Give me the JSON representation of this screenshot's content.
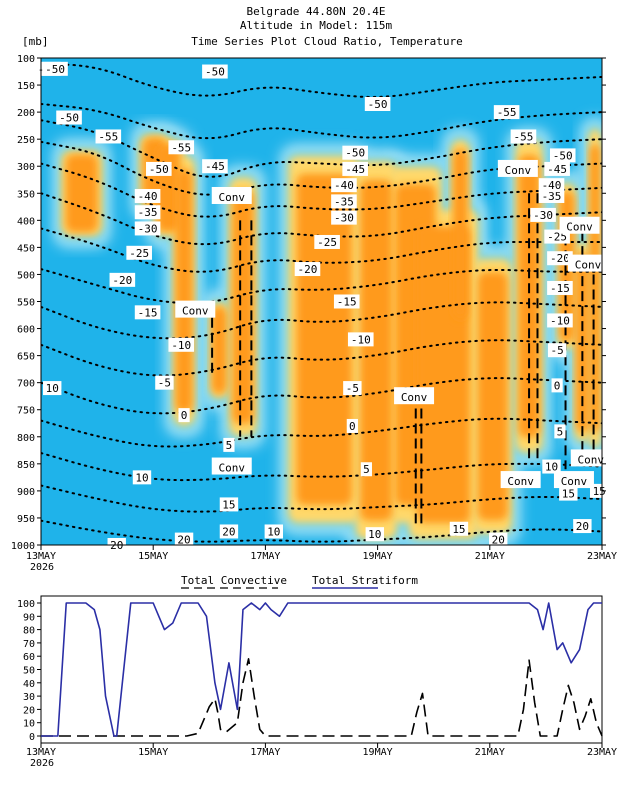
{
  "header": {
    "title": "Belgrade   44.80N 20.4E",
    "subtitle1": "Altitude in Model: 115m",
    "subtitle2": "Time Series Plot Cloud Ratio, Temperature",
    "yunit": "[mb]"
  },
  "colors": {
    "background_field": "#1fb3ea",
    "cloud_low": "#5fd0f0",
    "cloud_pale": "#bde9f7",
    "cloud_mid": "#ffd86a",
    "cloud_high": "#ff9a1e",
    "cloud_core": "#ff6a00",
    "convective_line": "#000000",
    "stratiform_line": "#2b2fa6"
  },
  "chart_data": [
    {
      "type": "heatmap",
      "title": "Time Series Plot Cloud Ratio, Temperature",
      "ylabel": "[mb]",
      "y_ticks": [
        100,
        150,
        200,
        250,
        300,
        350,
        400,
        450,
        500,
        550,
        600,
        650,
        700,
        750,
        800,
        850,
        900,
        950,
        1000
      ],
      "ylim": [
        100,
        1000
      ],
      "y_reversed": true,
      "x_ticks": [
        "13MAY",
        "15MAY",
        "17MAY",
        "19MAY",
        "21MAY",
        "23MAY"
      ],
      "x_year": "2026",
      "xlim_days": [
        13,
        23
      ],
      "cloud_columns": [
        {
          "x": [
            13.35,
            14.1
          ],
          "p": [
            270,
            430
          ]
        },
        {
          "x": [
            14.75,
            15.3
          ],
          "p": [
            240,
            380
          ]
        },
        {
          "x": [
            15.0,
            15.55
          ],
          "p": [
            250,
            430
          ]
        },
        {
          "x": [
            15.35,
            15.75
          ],
          "p": [
            280,
            780
          ]
        },
        {
          "x": [
            16.0,
            16.35
          ],
          "p": [
            550,
            730
          ]
        },
        {
          "x": [
            16.35,
            16.85
          ],
          "p": [
            320,
            800
          ]
        },
        {
          "x": [
            17.4,
            18.7
          ],
          "p": [
            280,
            960
          ]
        },
        {
          "x": [
            18.6,
            19.35
          ],
          "p": [
            290,
            990
          ]
        },
        {
          "x": [
            19.2,
            20.15
          ],
          "p": [
            300,
            960
          ]
        },
        {
          "x": [
            19.55,
            20.8
          ],
          "p": [
            380,
            990
          ]
        },
        {
          "x": [
            20.3,
            20.65
          ],
          "p": [
            250,
            600
          ]
        },
        {
          "x": [
            20.7,
            21.4
          ],
          "p": [
            470,
            980
          ]
        },
        {
          "x": [
            21.45,
            21.95
          ],
          "p": [
            250,
            830
          ]
        },
        {
          "x": [
            22.2,
            22.55
          ],
          "p": [
            330,
            640
          ]
        },
        {
          "x": [
            22.5,
            22.8
          ],
          "p": [
            440,
            810
          ]
        },
        {
          "x": [
            22.75,
            23.0
          ],
          "p": [
            230,
            820
          ]
        }
      ],
      "conv_lines": [
        {
          "x": 16.55,
          "p": [
            400,
            800
          ]
        },
        {
          "x": 16.75,
          "p": [
            400,
            800
          ]
        },
        {
          "x": 16.05,
          "p": [
            580,
            690
          ]
        },
        {
          "x": 19.68,
          "p": [
            720,
            960
          ]
        },
        {
          "x": 19.78,
          "p": [
            720,
            960
          ]
        },
        {
          "x": 21.7,
          "p": [
            350,
            840
          ]
        },
        {
          "x": 21.85,
          "p": [
            350,
            840
          ]
        },
        {
          "x": 22.35,
          "p": [
            400,
            860
          ]
        },
        {
          "x": 22.65,
          "p": [
            420,
            860
          ]
        },
        {
          "x": 22.85,
          "p": [
            500,
            860
          ]
        }
      ],
      "isotherms": [
        {
          "value": -50,
          "p": [
            110,
            115,
            155,
            175,
            150,
            165,
            175,
            160,
            145,
            140,
            135
          ]
        },
        {
          "value": -45,
          "p": [
            185,
            195,
            230,
            255,
            225,
            240,
            250,
            235,
            215,
            205,
            200
          ]
        },
        {
          "value": -40,
          "p": [
            215,
            235,
            285,
            330,
            290,
            295,
            300,
            285,
            265,
            255,
            250
          ]
        },
        {
          "value": -35,
          "p": [
            255,
            275,
            330,
            360,
            330,
            340,
            340,
            325,
            305,
            300,
            295
          ]
        },
        {
          "value": -30,
          "p": [
            295,
            325,
            375,
            400,
            370,
            380,
            380,
            365,
            350,
            345,
            340
          ]
        },
        {
          "value": -25,
          "p": [
            350,
            385,
            430,
            450,
            420,
            430,
            430,
            410,
            395,
            390,
            385
          ]
        },
        {
          "value": -20,
          "p": [
            415,
            445,
            485,
            500,
            470,
            480,
            475,
            455,
            440,
            440,
            440
          ]
        },
        {
          "value": -15,
          "p": [
            490,
            520,
            550,
            555,
            525,
            530,
            520,
            500,
            490,
            495,
            495
          ]
        },
        {
          "value": -10,
          "p": [
            560,
            600,
            620,
            615,
            580,
            590,
            580,
            560,
            550,
            555,
            560
          ]
        },
        {
          "value": -5,
          "p": [
            630,
            670,
            690,
            680,
            650,
            660,
            650,
            630,
            620,
            625,
            630
          ]
        },
        {
          "value": 0,
          "p": [
            700,
            740,
            760,
            750,
            720,
            730,
            720,
            700,
            690,
            695,
            700
          ]
        },
        {
          "value": 5,
          "p": [
            770,
            800,
            820,
            815,
            795,
            800,
            790,
            775,
            765,
            770,
            775
          ]
        },
        {
          "value": 10,
          "p": [
            830,
            860,
            880,
            880,
            870,
            875,
            870,
            860,
            850,
            850,
            855
          ]
        },
        {
          "value": 15,
          "p": [
            890,
            915,
            935,
            940,
            930,
            935,
            930,
            925,
            915,
            910,
            915
          ]
        },
        {
          "value": 20,
          "p": [
            955,
            975,
            990,
            995,
            990,
            995,
            990,
            985,
            975,
            970,
            975
          ]
        }
      ],
      "isotherm_x": [
        13,
        14,
        15,
        16,
        17,
        18,
        19,
        20,
        21,
        22,
        23
      ],
      "iso_labels": [
        {
          "t": "-50",
          "x": 13.12,
          "p": 120
        },
        {
          "t": "-50",
          "x": 16.1,
          "p": 125
        },
        {
          "t": "-50",
          "x": 19.0,
          "p": 185
        },
        {
          "t": "-50",
          "x": 13.5,
          "p": 210
        },
        {
          "t": "-55",
          "x": 14.2,
          "p": 245
        },
        {
          "t": "-55",
          "x": 21.3,
          "p": 200
        },
        {
          "t": "-55",
          "x": 21.6,
          "p": 245
        },
        {
          "t": "-55",
          "x": 15.5,
          "p": 265
        },
        {
          "t": "-50",
          "x": 15.1,
          "p": 305
        },
        {
          "t": "-45",
          "x": 16.1,
          "p": 300
        },
        {
          "t": "-50",
          "x": 18.6,
          "p": 275
        },
        {
          "t": "-45",
          "x": 18.6,
          "p": 305
        },
        {
          "t": "-40",
          "x": 18.4,
          "p": 335
        },
        {
          "t": "-35",
          "x": 18.4,
          "p": 365
        },
        {
          "t": "-30",
          "x": 18.4,
          "p": 395
        },
        {
          "t": "-25",
          "x": 18.1,
          "p": 440
        },
        {
          "t": "-20",
          "x": 17.75,
          "p": 490
        },
        {
          "t": "-15",
          "x": 18.45,
          "p": 550
        },
        {
          "t": "-10",
          "x": 18.7,
          "p": 620
        },
        {
          "t": "-5",
          "x": 18.55,
          "p": 710
        },
        {
          "t": "0",
          "x": 18.55,
          "p": 780
        },
        {
          "t": "5",
          "x": 18.8,
          "p": 860
        },
        {
          "t": "10",
          "x": 18.95,
          "p": 980
        },
        {
          "t": "10",
          "x": 17.15,
          "p": 975
        },
        {
          "t": "15",
          "x": 20.45,
          "p": 970
        },
        {
          "t": "20",
          "x": 21.15,
          "p": 990
        },
        {
          "t": "20",
          "x": 22.65,
          "p": 965
        },
        {
          "t": "15",
          "x": 22.4,
          "p": 905
        },
        {
          "t": "15",
          "x": 22.95,
          "p": 900
        },
        {
          "t": "10",
          "x": 22.1,
          "p": 855
        },
        {
          "t": "5",
          "x": 22.25,
          "p": 790
        },
        {
          "t": "0",
          "x": 22.2,
          "p": 705
        },
        {
          "t": "-5",
          "x": 22.2,
          "p": 640
        },
        {
          "t": "-10",
          "x": 22.25,
          "p": 585
        },
        {
          "t": "-15",
          "x": 22.25,
          "p": 525
        },
        {
          "t": "-20",
          "x": 22.25,
          "p": 470
        },
        {
          "t": "-25",
          "x": 22.2,
          "p": 430
        },
        {
          "t": "-30",
          "x": 21.95,
          "p": 390
        },
        {
          "t": "-35",
          "x": 22.1,
          "p": 355
        },
        {
          "t": "-40",
          "x": 22.1,
          "p": 335
        },
        {
          "t": "-45",
          "x": 22.2,
          "p": 305
        },
        {
          "t": "-50",
          "x": 22.3,
          "p": 280
        },
        {
          "t": "-50",
          "x": 13.25,
          "p": 120
        },
        {
          "t": "-40",
          "x": 14.9,
          "p": 355
        },
        {
          "t": "-35",
          "x": 14.9,
          "p": 385
        },
        {
          "t": "-30",
          "x": 14.9,
          "p": 415
        },
        {
          "t": "-25",
          "x": 14.75,
          "p": 460
        },
        {
          "t": "-20",
          "x": 14.45,
          "p": 510
        },
        {
          "t": "-15",
          "x": 14.9,
          "p": 570
        },
        {
          "t": "-10",
          "x": 15.5,
          "p": 630
        },
        {
          "t": "-5",
          "x": 15.2,
          "p": 700
        },
        {
          "t": "0",
          "x": 15.55,
          "p": 760
        },
        {
          "t": "5",
          "x": 16.35,
          "p": 815
        },
        {
          "t": "10",
          "x": 14.8,
          "p": 875
        },
        {
          "t": "15",
          "x": 16.35,
          "p": 925
        },
        {
          "t": "20",
          "x": 16.35,
          "p": 975
        },
        {
          "t": "20",
          "x": 15.55,
          "p": 990
        },
        {
          "t": "20",
          "x": 14.35,
          "p": 1000
        },
        {
          "t": "10",
          "x": 13.2,
          "p": 710
        }
      ],
      "conv_labels": [
        {
          "t": "Conv",
          "x": 16.4,
          "p": 355
        },
        {
          "t": "Conv",
          "x": 15.75,
          "p": 565
        },
        {
          "t": "Conv",
          "x": 16.4,
          "p": 855
        },
        {
          "t": "Conv",
          "x": 19.65,
          "p": 725
        },
        {
          "t": "Conv",
          "x": 21.5,
          "p": 305
        },
        {
          "t": "Conv",
          "x": 21.55,
          "p": 880
        },
        {
          "t": "Conv",
          "x": 22.5,
          "p": 880
        },
        {
          "t": "Conv",
          "x": 22.6,
          "p": 410
        },
        {
          "t": "Conv",
          "x": 22.75,
          "p": 480
        },
        {
          "t": "Conv",
          "x": 22.8,
          "p": 840
        }
      ]
    },
    {
      "type": "line",
      "title": "",
      "x_ticks": [
        "13MAY",
        "15MAY",
        "17MAY",
        "19MAY",
        "21MAY",
        "23MAY"
      ],
      "x_year": "2026",
      "xlim_days": [
        13,
        23
      ],
      "ylim": [
        0,
        100
      ],
      "y_ticks": [
        0,
        10,
        20,
        30,
        40,
        50,
        60,
        70,
        80,
        90,
        100
      ],
      "series": [
        {
          "name": "Total Convective",
          "style": "dashed",
          "x": [
            13.0,
            15.6,
            15.8,
            15.9,
            16.0,
            16.1,
            16.15,
            16.2,
            16.3,
            16.5,
            16.6,
            16.7,
            16.8,
            16.9,
            17.0,
            19.6,
            19.7,
            19.8,
            19.9,
            21.5,
            21.6,
            21.7,
            21.8,
            21.9,
            22.0,
            22.2,
            22.3,
            22.4,
            22.5,
            22.6,
            22.7,
            22.8,
            22.9,
            23.0
          ],
          "values": [
            0,
            0,
            2,
            12,
            22,
            28,
            18,
            5,
            3,
            10,
            40,
            58,
            30,
            5,
            0,
            0,
            18,
            32,
            0,
            0,
            20,
            57,
            25,
            0,
            0,
            0,
            20,
            38,
            25,
            5,
            15,
            28,
            10,
            0
          ]
        },
        {
          "name": "Total Stratiform",
          "style": "solid",
          "x": [
            13.0,
            13.3,
            13.45,
            13.8,
            13.95,
            14.05,
            14.15,
            14.3,
            14.35,
            14.6,
            14.8,
            15.0,
            15.1,
            15.2,
            15.35,
            15.5,
            15.6,
            15.8,
            15.95,
            16.1,
            16.2,
            16.35,
            16.5,
            16.6,
            16.75,
            16.9,
            17.0,
            17.1,
            17.25,
            17.4,
            17.6,
            19.0,
            20.0,
            20.5,
            21.0,
            21.7,
            21.85,
            21.95,
            22.05,
            22.2,
            22.3,
            22.45,
            22.6,
            22.75,
            22.85,
            23.0
          ],
          "values": [
            0,
            0,
            100,
            100,
            95,
            80,
            30,
            0,
            0,
            100,
            100,
            100,
            90,
            80,
            85,
            100,
            100,
            100,
            90,
            40,
            20,
            55,
            20,
            95,
            100,
            95,
            100,
            95,
            90,
            100,
            100,
            100,
            100,
            100,
            100,
            100,
            95,
            80,
            100,
            65,
            70,
            55,
            65,
            95,
            100,
            100
          ]
        }
      ]
    }
  ]
}
